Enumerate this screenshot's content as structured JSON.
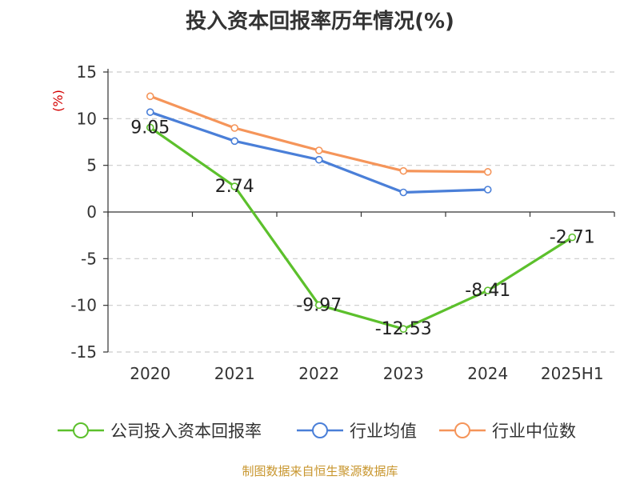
{
  "title": "投入资本回报率历年情况(%)",
  "source": "制图数据来自恒生聚源数据库",
  "chart_data": {
    "type": "line",
    "categories": [
      "2020",
      "2021",
      "2022",
      "2023",
      "2024",
      "2025H1"
    ],
    "ylabel": "(%)",
    "ylim": [
      -15,
      15
    ],
    "yticks": [
      15,
      10,
      5,
      0,
      -5,
      -10,
      -15
    ],
    "grid": true,
    "legend_position": "bottom",
    "series": [
      {
        "name": "公司投入资本回报率",
        "color": "#5cc02c",
        "values": [
          9.05,
          2.74,
          -9.97,
          -12.53,
          -8.41,
          -2.71
        ],
        "labels": [
          "9.05",
          "2.74",
          "-9.97",
          "-12.53",
          "-8.41",
          "-2.71"
        ]
      },
      {
        "name": "行业均值",
        "color": "#4a7fd8",
        "values": [
          10.7,
          7.6,
          5.6,
          2.1,
          2.4,
          null
        ]
      },
      {
        "name": "行业中位数",
        "color": "#f5955a",
        "values": [
          12.4,
          9.0,
          6.6,
          4.4,
          4.3,
          null
        ]
      }
    ]
  }
}
